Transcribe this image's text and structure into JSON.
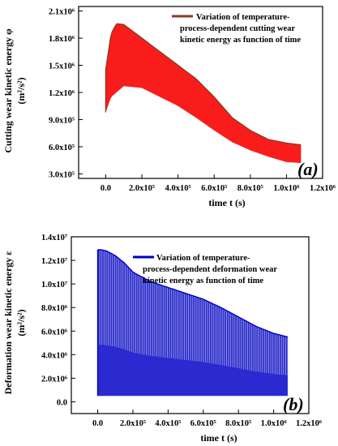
{
  "chart_data": [
    {
      "type": "line",
      "panel_label": "(a)",
      "xlabel": "time t (s)",
      "ylabel_main": "Cutting wear kinetic energy φ",
      "ylabel_unit": "(m²/s²)",
      "legend": [
        "Variation of temperature-",
        "process-dependent cutting wear",
        "kinetic energy as function of time"
      ],
      "xlim": [
        -150000,
        1200000
      ],
      "ylim": [
        250000,
        2150000
      ],
      "x_ticks": [
        {
          "v": 0,
          "label": "0.0"
        },
        {
          "v": 200000,
          "label": "2.0x10⁵"
        },
        {
          "v": 400000,
          "label": "4.0x10⁵"
        },
        {
          "v": 600000,
          "label": "6.0x10⁵"
        },
        {
          "v": 800000,
          "label": "8.0x10⁵"
        },
        {
          "v": 1000000,
          "label": "1.0x10⁶"
        },
        {
          "v": 1200000,
          "label": "1.2x10⁶"
        }
      ],
      "y_ticks": [
        {
          "v": 300000,
          "label": "3.0x10⁵"
        },
        {
          "v": 600000,
          "label": "6.0x10⁵"
        },
        {
          "v": 900000,
          "label": "9.0x10⁵"
        },
        {
          "v": 1200000,
          "label": "1.2x10⁶"
        },
        {
          "v": 1500000,
          "label": "1.5x10⁶"
        },
        {
          "v": 1800000,
          "label": "1.8x10⁶"
        },
        {
          "v": 2100000,
          "label": "2.1x10⁶"
        }
      ],
      "upper_envelope": {
        "x": [
          0,
          30000,
          60000,
          100000,
          200000,
          300000,
          400000,
          500000,
          600000,
          700000,
          800000,
          900000,
          1000000,
          1080000
        ],
        "y": [
          1450000,
          1850000,
          1960000,
          1950000,
          1800000,
          1650000,
          1500000,
          1350000,
          1150000,
          920000,
          780000,
          680000,
          640000,
          620000
        ]
      },
      "lower_envelope": {
        "x": [
          0,
          30000,
          100000,
          200000,
          300000,
          400000,
          500000,
          600000,
          700000,
          800000,
          900000,
          1000000,
          1080000
        ],
        "y": [
          980000,
          1150000,
          1270000,
          1250000,
          1150000,
          1050000,
          920000,
          780000,
          650000,
          560000,
          490000,
          430000,
          420000
        ]
      },
      "colors": {
        "fill": "#ff1a1a",
        "line": "#8a3b24",
        "oscillation": "#c0392b"
      }
    },
    {
      "type": "line",
      "panel_label": "(b)",
      "xlabel": "time t (s)",
      "ylabel_main": "Deformation wear kinetic energy ε",
      "ylabel_unit": "(m²/s²)",
      "legend": [
        "Variation of temperature-",
        "process-dependent deformation wear",
        "kinetic energy as function of time"
      ],
      "xlim": [
        -150000,
        1200000
      ],
      "ylim": [
        -1000000,
        14000000
      ],
      "x_ticks": [
        {
          "v": 0,
          "label": "0.0"
        },
        {
          "v": 200000,
          "label": "2.0x10⁵"
        },
        {
          "v": 400000,
          "label": "4.0x10⁵"
        },
        {
          "v": 600000,
          "label": "6.0x10⁵"
        },
        {
          "v": 800000,
          "label": "8.0x10⁵"
        },
        {
          "v": 1000000,
          "label": "1.0x10⁶"
        },
        {
          "v": 1200000,
          "label": "1.2x10⁶"
        }
      ],
      "y_ticks": [
        {
          "v": 0,
          "label": "0.0"
        },
        {
          "v": 2000000,
          "label": "2.0x10⁶"
        },
        {
          "v": 4000000,
          "label": "4.0x10⁶"
        },
        {
          "v": 6000000,
          "label": "6.0x10⁶"
        },
        {
          "v": 8000000,
          "label": "8.0x10⁶"
        },
        {
          "v": 10000000,
          "label": "1.0x10⁷"
        },
        {
          "v": 12000000,
          "label": "1.2x10⁷"
        },
        {
          "v": 14000000,
          "label": "1.4x10⁷"
        }
      ],
      "upper_envelope": {
        "x": [
          0,
          20000,
          50000,
          100000,
          150000,
          200000,
          300000,
          400000,
          500000,
          600000,
          700000,
          800000,
          900000,
          1000000,
          1080000
        ],
        "y": [
          12900000,
          12900000,
          12800000,
          12400000,
          11800000,
          11000000,
          10200000,
          9700000,
          9200000,
          8700000,
          8000000,
          7200000,
          6400000,
          5800000,
          5500000
        ]
      },
      "lower_envelope": {
        "x": [
          0,
          1080000
        ],
        "y": [
          500000,
          500000
        ]
      },
      "colors": {
        "fill": "#2a2ad0",
        "line": "#0000c8",
        "oscillation": "#bfc4dc"
      }
    }
  ]
}
